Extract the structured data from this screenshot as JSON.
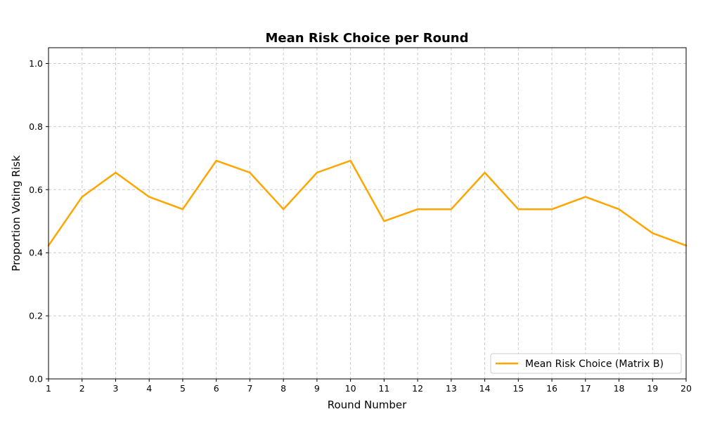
{
  "chart_data": {
    "type": "line",
    "title": "Mean Risk Choice per Round",
    "xlabel": "Round Number",
    "ylabel": "Proportion Voting Risk",
    "xlim": [
      1,
      20
    ],
    "ylim": [
      0,
      1.05
    ],
    "x": [
      1,
      2,
      3,
      4,
      5,
      6,
      7,
      8,
      9,
      10,
      11,
      12,
      13,
      14,
      15,
      16,
      17,
      18,
      19,
      20
    ],
    "xticks": [
      "1",
      "2",
      "3",
      "4",
      "5",
      "6",
      "7",
      "8",
      "9",
      "10",
      "11",
      "12",
      "13",
      "14",
      "15",
      "16",
      "17",
      "18",
      "19",
      "20"
    ],
    "yticks": [
      "0.0",
      "0.2",
      "0.4",
      "0.6",
      "0.8",
      "1.0"
    ],
    "series": [
      {
        "name": "Mean Risk Choice (Matrix B)",
        "color": "#ffa500",
        "values": [
          0.423,
          0.577,
          0.654,
          0.577,
          0.538,
          0.692,
          0.654,
          0.538,
          0.654,
          0.692,
          0.5,
          0.538,
          0.538,
          0.654,
          0.538,
          0.538,
          0.577,
          0.538,
          0.462,
          0.423
        ]
      }
    ],
    "grid": true,
    "grid_style": "dashed",
    "legend_position": "lower-right"
  }
}
